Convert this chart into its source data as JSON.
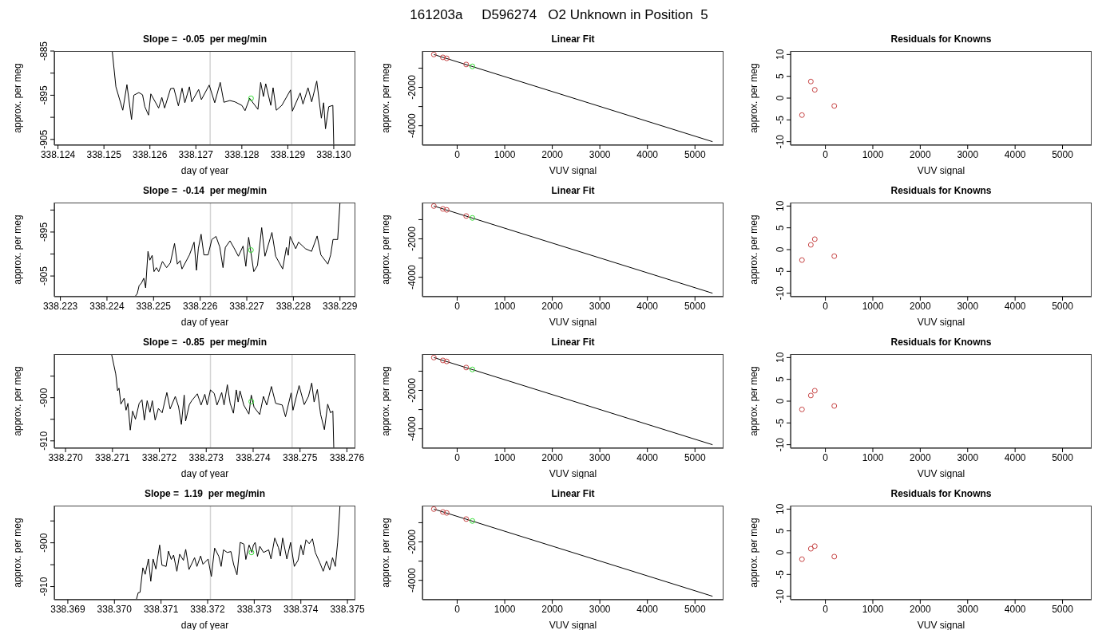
{
  "chart_data": [
    {
      "type": "other",
      "title": "161203a     D596274   O2 Unknown in Position  5"
    },
    {
      "type": "line",
      "title": "Slope =  -0.05  per meg/min",
      "xlabel": "day of year",
      "ylabel": "approx. per meg",
      "xlim": [
        338.12392,
        338.13047
      ],
      "ylim": [
        -906.3,
        -885
      ],
      "xticks": [
        338.124,
        338.125,
        338.126,
        338.127,
        338.128,
        338.129,
        {
          "value": 338.13,
          "label": "338.130"
        }
      ],
      "yticks": [
        -905,
        {
          "value": -900,
          "label": null
        },
        -895,
        {
          "value": -890,
          "label": null
        },
        -885
      ],
      "ref_lines": [
        {
          "axis": "x",
          "value": 338.12731,
          "color": "#d3d3d3"
        },
        {
          "axis": "x",
          "value": 338.12908,
          "color": "#d3d3d3"
        }
      ],
      "series": [
        {
          "color": "#000000",
          "x": [
            338.12518,
            338.12526,
            338.12541,
            338.1255,
            338.1256,
            338.12565,
            338.12576,
            338.12584,
            338.12589,
            338.12597,
            338.12602,
            338.12619,
            338.12626,
            338.12632,
            338.12645,
            338.12652,
            338.12662,
            338.1267,
            338.12676,
            338.12686,
            338.12691,
            338.12706,
            338.12712,
            338.12729,
            338.12741,
            338.12753,
            338.12761,
            338.12774,
            338.12785,
            338.128,
            338.12807,
            338.12817,
            338.12835,
            338.12841,
            338.12847,
            338.12852,
            338.12863,
            338.12868,
            338.12875,
            338.12887,
            338.12906,
            338.1291,
            338.12927,
            338.12933,
            338.12944,
            338.12952,
            338.12963,
            338.12973,
            338.12978,
            338.12982,
            338.12989,
            338.12998,
            338.13
          ],
          "values": [
            -885,
            -893.1,
            -898.4,
            -892.6,
            -900.5,
            -895,
            -894.4,
            -894.9,
            -897.6,
            -899.5,
            -894.7,
            -897.9,
            -895.5,
            -897.9,
            -893.5,
            -893.4,
            -897.4,
            -893.4,
            -896.7,
            -893.1,
            -896.5,
            -893.7,
            -896,
            -892.7,
            -896.7,
            -892.1,
            -896.6,
            -896.2,
            -896.5,
            -897.3,
            -898.5,
            -895.7,
            -898.2,
            -892.1,
            -895.3,
            -892.4,
            -897.3,
            -893.3,
            -898.4,
            -897.3,
            -893.8,
            -898.6,
            -894.5,
            -897,
            -893.3,
            -896.5,
            -891.8,
            -900.2,
            -896.7,
            -902.6,
            -897.6,
            -897.3,
            -906.3
          ]
        },
        {
          "type": "scatter",
          "marker": "circle",
          "color": "#33dd33",
          "x": [
            338.1282
          ],
          "values": [
            -895.7
          ]
        }
      ]
    },
    {
      "type": "scatter",
      "title": "Linear Fit",
      "xlabel": "VUV signal",
      "ylabel": "approx. per meg",
      "xlim": [
        -730,
        5600
      ],
      "ylim": [
        -5010,
        -110
      ],
      "xticks": [
        0,
        1000,
        2000,
        3000,
        4000,
        5000
      ],
      "yticks": [
        -4000,
        {
          "value": -3000,
          "label": null
        },
        -2000,
        {
          "value": -1000,
          "label": null
        }
      ],
      "series": [
        {
          "type": "line",
          "color": "#000000",
          "x": [
            -490,
            5370
          ],
          "values": [
            -290,
            -4830
          ]
        },
        {
          "marker": "circle",
          "color": "#c84848",
          "x": [
            -490,
            -300,
            -220,
            190
          ],
          "values": [
            -290,
            -440,
            -490,
            -810
          ]
        },
        {
          "marker": "circle",
          "color": "#33dd33",
          "x": [
            320
          ],
          "values": [
            -910
          ]
        }
      ]
    },
    {
      "type": "scatter",
      "title": "Residuals for Knowns",
      "xlabel": "VUV signal",
      "ylabel": "approx. per meg",
      "xlim": [
        -734,
        5614
      ],
      "ylim": [
        -10.8,
        10.8
      ],
      "xticks": [
        0,
        1000,
        2000,
        3000,
        4000,
        5000
      ],
      "yticks": [
        -10,
        -5,
        0,
        5,
        10
      ],
      "series": [
        {
          "marker": "circle",
          "color": "#c84848",
          "x": [
            -494,
            -307,
            -224,
            187
          ],
          "values": [
            -3.9,
            3.8,
            1.9,
            -1.8
          ]
        }
      ]
    },
    {
      "type": "line",
      "title": "Slope =  -0.14  per meg/min",
      "xlabel": "day of year",
      "ylabel": "approx. per meg",
      "xlim": [
        338.22287,
        338.22933
      ],
      "ylim": [
        -909.7,
        -888.3
      ],
      "xticks": [
        338.223,
        338.224,
        338.225,
        338.226,
        338.227,
        338.228,
        338.229
      ],
      "yticks": [
        -905,
        {
          "value": -900,
          "label": null
        },
        -895,
        {
          "value": -890,
          "label": null
        }
      ],
      "ref_lines": [
        {
          "axis": "x",
          "value": 338.22622,
          "color": "#d3d3d3"
        },
        {
          "axis": "x",
          "value": 338.22797,
          "color": "#d3d3d3"
        }
      ],
      "series": [
        {
          "color": "#000000",
          "x": [
            338.2246,
            338.22465,
            338.22469,
            338.22474,
            338.22479,
            338.22483,
            338.22488,
            338.22492,
            338.22497,
            338.22501,
            338.22506,
            338.22511,
            338.22519,
            338.22528,
            338.22536,
            338.22545,
            338.22551,
            338.22557,
            338.22561,
            338.22577,
            338.22587,
            338.22592,
            338.22596,
            338.22602,
            338.22608,
            338.22617,
            338.22625,
            338.22634,
            338.22642,
            338.22649,
            338.22654,
            338.22664,
            338.22672,
            338.22682,
            338.22692,
            338.22698,
            338.22704,
            338.22715,
            338.22723,
            338.22732,
            338.22739,
            338.22754,
            338.22762,
            338.22777,
            338.22785,
            338.22789,
            338.22793,
            338.22805,
            338.22811,
            338.22826,
            338.22839,
            338.22851,
            338.22859,
            338.22874,
            338.2288,
            338.22885,
            338.22895,
            338.229
          ],
          "values": [
            -909.7,
            -909,
            -907.2,
            -906.6,
            -905.5,
            -907.7,
            -899.4,
            -901.4,
            -900.3,
            -904,
            -903.1,
            -904,
            -901.7,
            -903.1,
            -902,
            -897.6,
            -902.3,
            -901.5,
            -903.4,
            -900.2,
            -897.3,
            -903.7,
            -898.8,
            -895.5,
            -900.2,
            -900.2,
            -896.7,
            -896,
            -898.4,
            -903.1,
            -898.5,
            -897,
            -898.5,
            -900.5,
            -898.2,
            -902.8,
            -896.2,
            -904,
            -902.6,
            -894,
            -900.5,
            -895.1,
            -900.5,
            -903.4,
            -898.5,
            -900.3,
            -896,
            -898.8,
            -897.3,
            -898.8,
            -899.4,
            -895.9,
            -900.2,
            -902.3,
            -900.2,
            -896.7,
            -896.7,
            -888.3
          ]
        },
        {
          "type": "scatter",
          "marker": "circle",
          "color": "#33dd33",
          "x": [
            338.22709
          ],
          "values": [
            -899.1
          ]
        }
      ]
    },
    {
      "type": "scatter",
      "title": "Linear Fit",
      "xlabel": "VUV signal",
      "ylabel": "approx. per meg",
      "xlim": [
        -730,
        5600
      ],
      "ylim": [
        -5010,
        -110
      ],
      "xticks": [
        0,
        1000,
        2000,
        3000,
        4000,
        5000
      ],
      "yticks": [
        -4000,
        {
          "value": -3000,
          "label": null
        },
        -2000,
        {
          "value": -1000,
          "label": null
        }
      ],
      "series": [
        {
          "type": "line",
          "color": "#000000",
          "x": [
            -490,
            5370
          ],
          "values": [
            -290,
            -4830
          ]
        },
        {
          "marker": "circle",
          "color": "#c84848",
          "x": [
            -490,
            -300,
            -220,
            190
          ],
          "values": [
            -290,
            -440,
            -490,
            -810
          ]
        },
        {
          "marker": "circle",
          "color": "#33dd33",
          "x": [
            320
          ],
          "values": [
            -910
          ]
        }
      ]
    },
    {
      "type": "scatter",
      "title": "Residuals for Knowns",
      "xlabel": "VUV signal",
      "ylabel": "approx. per meg",
      "xlim": [
        -734,
        5614
      ],
      "ylim": [
        -10.8,
        10.8
      ],
      "xticks": [
        0,
        1000,
        2000,
        3000,
        4000,
        5000
      ],
      "yticks": [
        -10,
        -5,
        0,
        5,
        10
      ],
      "series": [
        {
          "marker": "circle",
          "color": "#c84848",
          "x": [
            -494,
            -307,
            -224,
            187
          ],
          "values": [
            -2.4,
            1.1,
            2.4,
            -1.5
          ]
        }
      ]
    },
    {
      "type": "line",
      "title": "Slope =  -0.85  per meg/min",
      "xlabel": "day of year",
      "ylabel": "approx. per meg",
      "xlim": [
        338.26976,
        338.27618
      ],
      "ylim": [
        -911.7,
        -889.9
      ],
      "xticks": [
        {
          "value": 338.27,
          "label": "338.270"
        },
        338.271,
        338.272,
        338.273,
        338.274,
        338.275,
        338.276
      ],
      "yticks": [
        -910,
        {
          "value": -905,
          "label": null
        },
        -900,
        {
          "value": -895,
          "label": null
        }
      ],
      "ref_lines": [
        {
          "axis": "x",
          "value": 338.27309,
          "color": "#d3d3d3"
        },
        {
          "axis": "x",
          "value": 338.27483,
          "color": "#d3d3d3"
        }
      ],
      "series": [
        {
          "color": "#000000",
          "x": [
            338.27098,
            338.27107,
            338.27111,
            338.27114,
            338.27118,
            338.27125,
            338.27129,
            338.27133,
            338.27138,
            338.27143,
            338.27149,
            338.27157,
            338.27163,
            338.27168,
            338.27174,
            338.2718,
            338.27185,
            338.27191,
            338.27198,
            338.27206,
            338.27216,
            338.27223,
            338.27234,
            338.27241,
            338.27247,
            338.27253,
            338.27256,
            338.27264,
            338.27269,
            338.27281,
            338.27289,
            338.27297,
            338.27302,
            338.27309,
            338.27317,
            338.27323,
            338.27333,
            338.27338,
            338.27345,
            338.27351,
            338.27358,
            338.27364,
            338.27368,
            338.27372,
            338.2738,
            338.27391,
            338.27396,
            338.27402,
            338.27414,
            338.27422,
            338.27429,
            338.27439,
            338.27448,
            338.27462,
            338.27469,
            338.27481,
            338.27485,
            338.27498,
            338.27509,
            338.27518,
            338.27525,
            338.2753,
            338.27537,
            338.27544,
            338.27552,
            338.27559,
            338.27565,
            338.2757,
            338.27572
          ],
          "values": [
            -889.9,
            -894.5,
            -898.4,
            -897.8,
            -901.5,
            -900.1,
            -902.9,
            -901.3,
            -907.5,
            -903.1,
            -905,
            -901.3,
            -900.5,
            -905.2,
            -900.7,
            -903.4,
            -900.7,
            -905.2,
            -902.5,
            -903.5,
            -898.8,
            -902.6,
            -899.7,
            -902.1,
            -906.2,
            -899.4,
            -905.4,
            -901.6,
            -900.7,
            -899.1,
            -901.7,
            -899.2,
            -901.7,
            -898.2,
            -899,
            -901.7,
            -898.8,
            -901.7,
            -897,
            -901.3,
            -903.6,
            -898.2,
            -901,
            -898.4,
            -901.7,
            -903.8,
            -899.4,
            -902.2,
            -903.9,
            -899.7,
            -901.7,
            -897.4,
            -901.3,
            -901.7,
            -904.4,
            -898.9,
            -902.9,
            -897.2,
            -901.6,
            -899.7,
            -896.6,
            -901,
            -898.1,
            -903.9,
            -907.4,
            -901.5,
            -903.5,
            -903.1,
            -911.7
          ]
        },
        {
          "type": "scatter",
          "marker": "circle",
          "color": "#33dd33",
          "x": [
            338.27396
          ],
          "values": [
            -900.9
          ]
        }
      ]
    },
    {
      "type": "scatter",
      "title": "Linear Fit",
      "xlabel": "VUV signal",
      "ylabel": "approx. per meg",
      "xlim": [
        -730,
        5600
      ],
      "ylim": [
        -5010,
        -110
      ],
      "xticks": [
        0,
        1000,
        2000,
        3000,
        4000,
        5000
      ],
      "yticks": [
        -4000,
        {
          "value": -3000,
          "label": null
        },
        -2000,
        {
          "value": -1000,
          "label": null
        }
      ],
      "series": [
        {
          "type": "line",
          "color": "#000000",
          "x": [
            -490,
            5370
          ],
          "values": [
            -290,
            -4830
          ]
        },
        {
          "marker": "circle",
          "color": "#c84848",
          "x": [
            -490,
            -300,
            -220,
            190
          ],
          "values": [
            -290,
            -440,
            -490,
            -810
          ]
        },
        {
          "marker": "circle",
          "color": "#33dd33",
          "x": [
            320
          ],
          "values": [
            -910
          ]
        }
      ]
    },
    {
      "type": "scatter",
      "title": "Residuals for Knowns",
      "xlabel": "VUV signal",
      "ylabel": "approx. per meg",
      "xlim": [
        -734,
        5614
      ],
      "ylim": [
        -10.8,
        10.8
      ],
      "xticks": [
        0,
        1000,
        2000,
        3000,
        4000,
        5000
      ],
      "yticks": [
        -10,
        -5,
        0,
        5,
        10
      ],
      "series": [
        {
          "marker": "circle",
          "color": "#c84848",
          "x": [
            -494,
            -307,
            -224,
            187
          ],
          "values": [
            -1.9,
            1.3,
            2.4,
            -1.1
          ]
        }
      ]
    },
    {
      "type": "line",
      "title": "Slope =  1.19  per meg/min",
      "xlabel": "day of year",
      "ylabel": "approx. per meg",
      "xlim": [
        338.36871,
        338.37517
      ],
      "ylim": [
        -913,
        -891.5
      ],
      "xticks": [
        338.369,
        {
          "value": 338.37,
          "label": "338.370"
        },
        338.371,
        338.372,
        338.373,
        338.374,
        338.375
      ],
      "yticks": [
        -910,
        {
          "value": -905,
          "label": null
        },
        -900,
        {
          "value": -895,
          "label": null
        }
      ],
      "ref_lines": [
        {
          "axis": "x",
          "value": 338.37206,
          "color": "#d3d3d3"
        },
        {
          "axis": "x",
          "value": 338.37381,
          "color": "#d3d3d3"
        }
      ],
      "series": [
        {
          "color": "#000000",
          "x": [
            338.37047,
            338.37051,
            338.37055,
            338.37061,
            338.37066,
            338.37073,
            338.37078,
            338.37083,
            338.37089,
            338.37097,
            338.37102,
            338.37111,
            338.37116,
            338.37122,
            338.37127,
            338.37134,
            338.3714,
            338.37148,
            338.37153,
            338.3716,
            338.37172,
            338.37177,
            338.37185,
            338.3719,
            338.37201,
            338.37208,
            338.37215,
            338.37224,
            338.37229,
            338.37234,
            338.37242,
            338.3725,
            338.37256,
            338.37263,
            338.3727,
            338.37278,
            338.37282,
            338.37289,
            338.37295,
            338.37298,
            338.37302,
            338.37307,
            338.37312,
            338.3732,
            338.37331,
            338.37336,
            338.37344,
            338.37352,
            338.37356,
            338.37361,
            338.3737,
            338.37378,
            338.37386,
            338.37394,
            338.374,
            338.37405,
            338.37411,
            338.37418,
            338.37425,
            338.37431,
            338.37441,
            338.37448,
            338.37455,
            338.37462,
            338.37468,
            338.37474,
            338.37479,
            338.37484
          ],
          "values": [
            -913,
            -911.4,
            -911.3,
            -905.7,
            -907.2,
            -903.7,
            -908.8,
            -903.7,
            -906,
            -900.5,
            -905.1,
            -905.4,
            -901.9,
            -903.8,
            -902.8,
            -906.5,
            -902.6,
            -904,
            -901.5,
            -906.1,
            -903.4,
            -905.4,
            -903,
            -904.9,
            -903.7,
            -907.7,
            -901.2,
            -903.1,
            -905.4,
            -901.6,
            -902.2,
            -902,
            -905,
            -907.3,
            -899.9,
            -900.3,
            -903.8,
            -900.5,
            -902.2,
            -900.6,
            -899.9,
            -903.1,
            -900.8,
            -902.2,
            -901.6,
            -903.7,
            -898.9,
            -901.1,
            -903,
            -898.9,
            -903.7,
            -899.9,
            -905.4,
            -904,
            -900.5,
            -902.8,
            -899.3,
            -900.2,
            -899.1,
            -902.2,
            -904.6,
            -906.5,
            -904.2,
            -906.2,
            -903.4,
            -905.4,
            -899.9,
            -891.5
          ]
        },
        {
          "type": "scatter",
          "marker": "circle",
          "color": "#33dd33",
          "x": [
            338.37294
          ],
          "values": [
            -902.2
          ]
        }
      ]
    },
    {
      "type": "scatter",
      "title": "Linear Fit",
      "xlabel": "VUV signal",
      "ylabel": "approx. per meg",
      "xlim": [
        -730,
        5600
      ],
      "ylim": [
        -5010,
        -110
      ],
      "xticks": [
        0,
        1000,
        2000,
        3000,
        4000,
        5000
      ],
      "yticks": [
        -4000,
        {
          "value": -3000,
          "label": null
        },
        -2000,
        {
          "value": -1000,
          "label": null
        }
      ],
      "series": [
        {
          "type": "line",
          "color": "#000000",
          "x": [
            -490,
            5370
          ],
          "values": [
            -290,
            -4830
          ]
        },
        {
          "marker": "circle",
          "color": "#c84848",
          "x": [
            -490,
            -300,
            -220,
            190
          ],
          "values": [
            -290,
            -440,
            -490,
            -810
          ]
        },
        {
          "marker": "circle",
          "color": "#33dd33",
          "x": [
            320
          ],
          "values": [
            -910
          ]
        }
      ]
    },
    {
      "type": "scatter",
      "title": "Residuals for Knowns",
      "xlabel": "VUV signal",
      "ylabel": "approx. per meg",
      "xlim": [
        -734,
        5614
      ],
      "ylim": [
        -10.8,
        10.8
      ],
      "xticks": [
        0,
        1000,
        2000,
        3000,
        4000,
        5000
      ],
      "yticks": [
        -10,
        -5,
        0,
        5,
        10
      ],
      "series": [
        {
          "marker": "circle",
          "color": "#c84848",
          "x": [
            -494,
            -307,
            -224,
            187
          ],
          "values": [
            -1.5,
            0.9,
            1.5,
            -0.9
          ]
        }
      ]
    }
  ]
}
